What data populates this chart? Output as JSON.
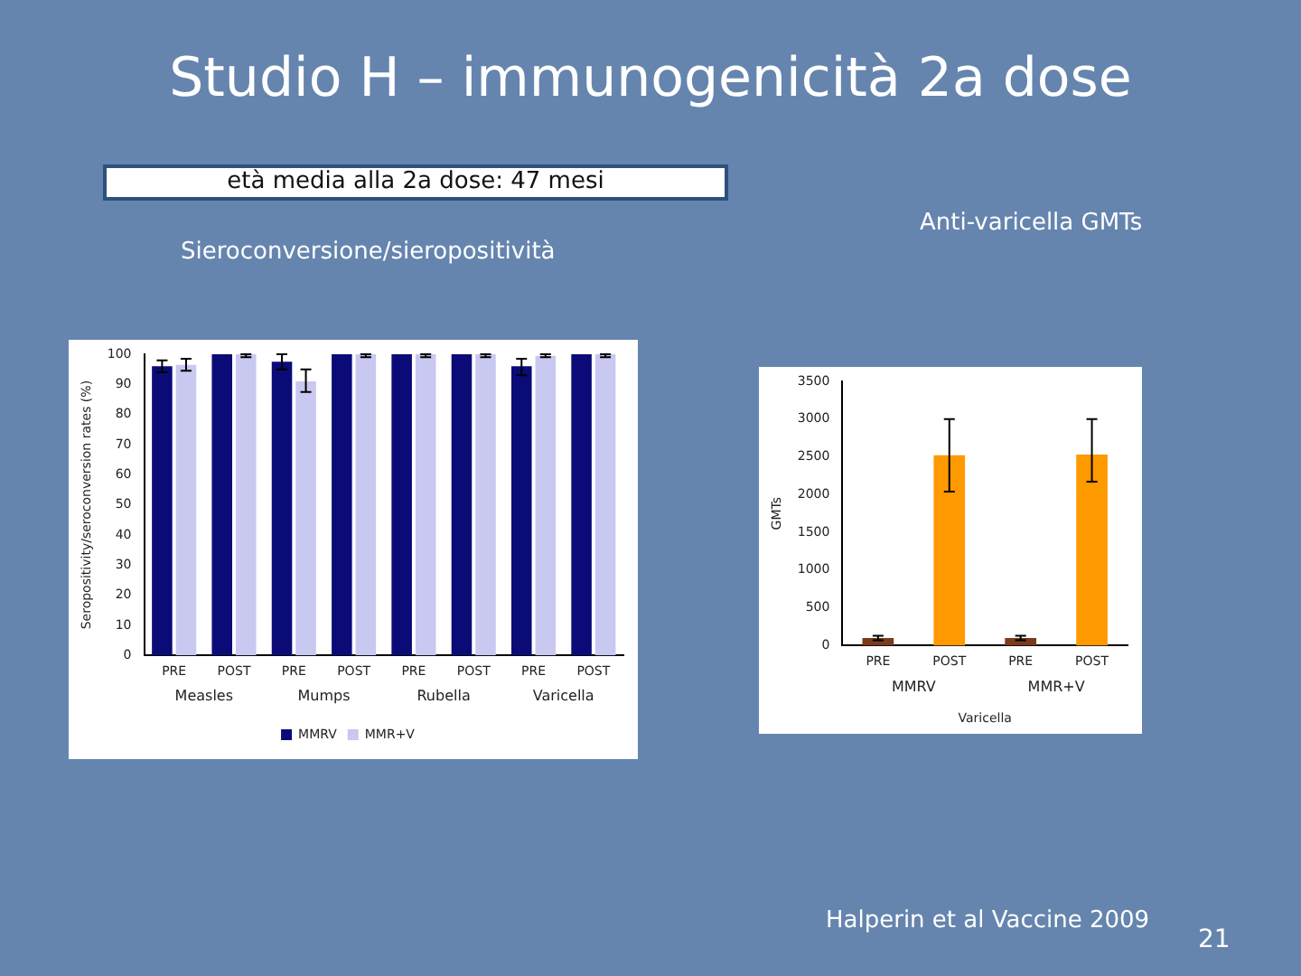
{
  "chart_data": [
    {
      "type": "bar",
      "title": "Studio H – immunogenicità 2a dose",
      "subtitle": "età media alla 2a dose: 47 mesi",
      "ylabel": "Seropositivity/seroconversion rates (%)",
      "categories": [
        "PRE",
        "POST",
        "PRE",
        "POST",
        "PRE",
        "POST",
        "PRE",
        "POST"
      ],
      "series": [
        {
          "name": "MMRV",
          "color": "#0b0b78",
          "values": [
            96,
            100,
            97.5,
            100,
            100,
            100,
            96,
            100
          ],
          "errors": [
            [
              94,
              98
            ],
            null,
            [
              95,
              100
            ],
            null,
            null,
            null,
            [
              93,
              98.5
            ],
            null
          ]
        },
        {
          "name": "MMR+V",
          "color": "#c8c8f0",
          "values": [
            96.5,
            100,
            91,
            100,
            100,
            100,
            99.5,
            100
          ],
          "errors": [
            [
              94.5,
              98.5
            ],
            [
              99,
              100
            ],
            [
              87.5,
              95
            ],
            [
              99,
              100
            ],
            [
              99,
              100
            ],
            [
              99,
              100
            ],
            [
              99,
              100
            ],
            [
              99,
              100
            ]
          ]
        }
      ],
      "ylim": [
        0,
        100
      ],
      "yticks": [
        0,
        10,
        20,
        30,
        40,
        50,
        60,
        70,
        80,
        90,
        100
      ],
      "grid": false,
      "legend": "bottom",
      "annotations": [
        "Measles",
        "Mumps",
        "Rubella",
        "Varicella",
        "Sieroconversione/sieropositività"
      ]
    },
    {
      "type": "bar",
      "title": "Anti-varicella GMTs",
      "ylabel": "GMTs",
      "xlabel": "Varicella",
      "categories": [
        "PRE",
        "POST",
        "PRE",
        "POST"
      ],
      "values": [
        100,
        2520,
        100,
        2530
      ],
      "colors": [
        "#7a3a1e",
        "#ff9900",
        "#7a3a1e",
        "#ff9900"
      ],
      "errors": [
        [
          70,
          130
        ],
        [
          2040,
          3000
        ],
        [
          70,
          130
        ],
        [
          2170,
          3000
        ]
      ],
      "ylim": [
        0,
        3500
      ],
      "yticks": [
        0,
        500,
        1000,
        1500,
        2000,
        2500,
        3000,
        3500
      ],
      "grid": false,
      "legend": false,
      "annotations": [
        "MMRV",
        "MMR+V",
        "Halperin et al Vaccine 2009",
        "21"
      ]
    }
  ]
}
